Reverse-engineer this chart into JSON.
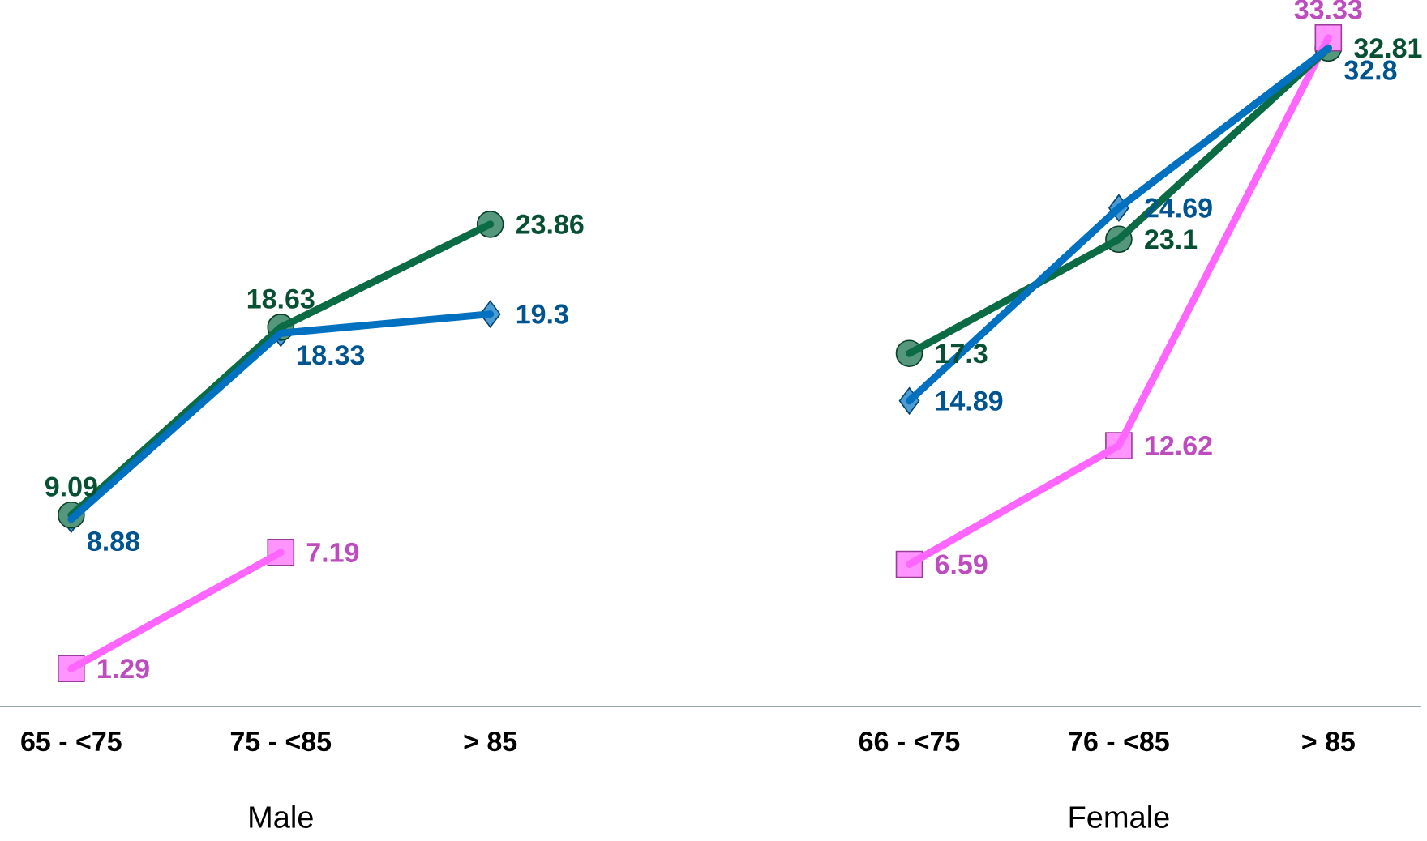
{
  "chart_data": {
    "type": "line",
    "categories": [
      "65 - <75",
      "75 - <85",
      "> 85",
      null,
      "66 - <75",
      "76 - <85",
      "> 85"
    ],
    "series": [
      {
        "color": "#0070c0",
        "marker": "diamond",
        "values": [
          8.88,
          18.33,
          19.3,
          null,
          14.89,
          24.69,
          32.8
        ]
      },
      {
        "color": "#0b6b45",
        "marker": "circle",
        "values": [
          9.09,
          18.63,
          23.86,
          null,
          17.3,
          23.1,
          32.81
        ]
      },
      {
        "color": "#ff66ff",
        "marker": "square",
        "values": [
          1.29,
          7.19,
          null,
          null,
          6.59,
          12.62,
          33.33
        ]
      }
    ],
    "data_labels": true,
    "line_style": "solid",
    "annotations": [
      "Male",
      "Female"
    ]
  }
}
